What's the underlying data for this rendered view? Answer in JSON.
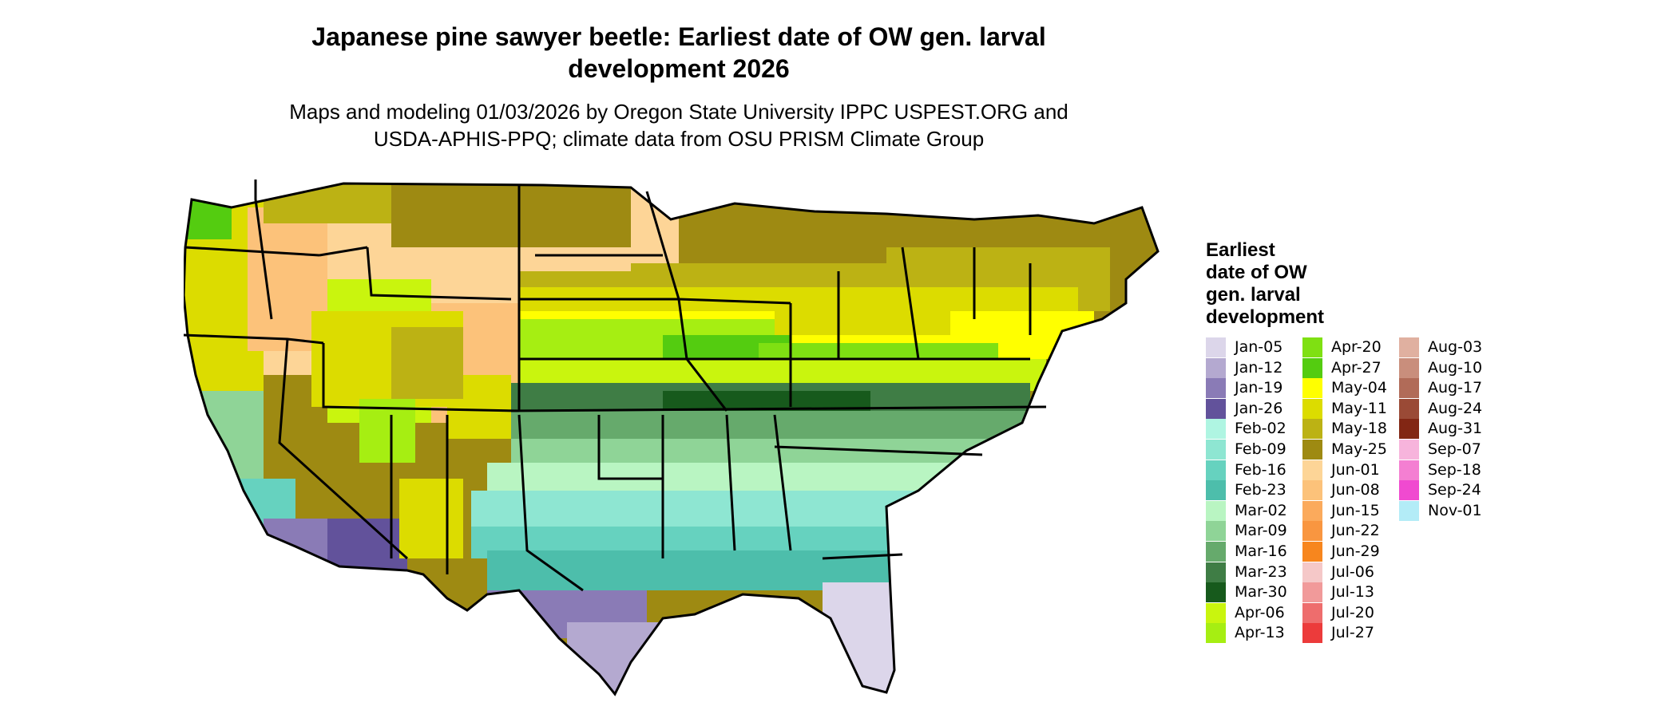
{
  "title_line1": "Japanese pine sawyer beetle: Earliest date of OW gen. larval",
  "title_line2": "development 2026",
  "subtitle_line1": "Maps and modeling 01/03/2026 by Oregon State University IPPC USPEST.ORG and",
  "subtitle_line2": "USDA-APHIS-PPQ; climate data from OSU PRISM Climate Group",
  "legend": {
    "title_lines": [
      "Earliest",
      "date of OW",
      "gen. larval",
      "development"
    ],
    "items": [
      {
        "label": "Jan-05",
        "color": "#dcd6ea"
      },
      {
        "label": "Jan-12",
        "color": "#b4a9d0"
      },
      {
        "label": "Jan-19",
        "color": "#8a7bb6"
      },
      {
        "label": "Jan-26",
        "color": "#62529b"
      },
      {
        "label": "Feb-02",
        "color": "#aff5e2"
      },
      {
        "label": "Feb-09",
        "color": "#8ee6d2"
      },
      {
        "label": "Feb-16",
        "color": "#66d2bf"
      },
      {
        "label": "Feb-23",
        "color": "#4dbeab"
      },
      {
        "label": "Mar-02",
        "color": "#b9f5c2"
      },
      {
        "label": "Mar-09",
        "color": "#8fd497"
      },
      {
        "label": "Mar-16",
        "color": "#66aa6c"
      },
      {
        "label": "Mar-23",
        "color": "#3f7d45"
      },
      {
        "label": "Mar-30",
        "color": "#175a1c"
      },
      {
        "label": "Apr-06",
        "color": "#c9f50e"
      },
      {
        "label": "Apr-13",
        "color": "#a6ee12"
      },
      {
        "label": "Apr-20",
        "color": "#7fe012"
      },
      {
        "label": "Apr-27",
        "color": "#54cc10"
      },
      {
        "label": "May-04",
        "color": "#ffff00"
      },
      {
        "label": "May-11",
        "color": "#dcdc00"
      },
      {
        "label": "May-18",
        "color": "#bcb214"
      },
      {
        "label": "May-25",
        "color": "#9e8a12"
      },
      {
        "label": "Jun-01",
        "color": "#fdd597"
      },
      {
        "label": "Jun-08",
        "color": "#fcc27a"
      },
      {
        "label": "Jun-15",
        "color": "#fbaa5c"
      },
      {
        "label": "Jun-22",
        "color": "#f99640"
      },
      {
        "label": "Jun-29",
        "color": "#f7861e"
      },
      {
        "label": "Jul-06",
        "color": "#f5c8c8"
      },
      {
        "label": "Jul-13",
        "color": "#f19a9a"
      },
      {
        "label": "Jul-20",
        "color": "#ee6d6d"
      },
      {
        "label": "Jul-27",
        "color": "#ec3b3b"
      },
      {
        "label": "Aug-03",
        "color": "#e0b0a0"
      },
      {
        "label": "Aug-10",
        "color": "#c98e7c"
      },
      {
        "label": "Aug-17",
        "color": "#b16b58"
      },
      {
        "label": "Aug-24",
        "color": "#9a4a36"
      },
      {
        "label": "Aug-31",
        "color": "#822614"
      },
      {
        "label": "Sep-07",
        "color": "#f7b4dc"
      },
      {
        "label": "Sep-18",
        "color": "#f47fd2"
      },
      {
        "label": "Sep-24",
        "color": "#f04ad0"
      },
      {
        "label": "Nov-01",
        "color": "#b3ecf7"
      }
    ]
  }
}
